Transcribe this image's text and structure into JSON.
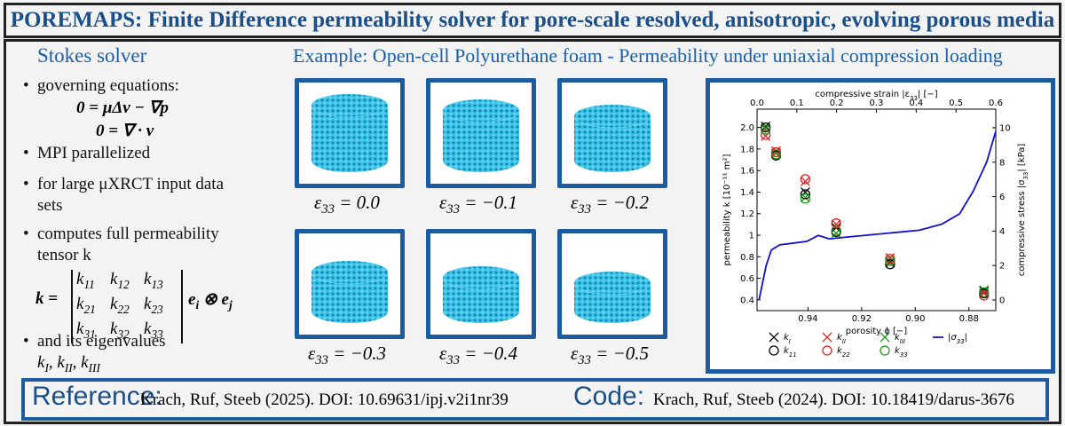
{
  "header": {
    "title": "POREMAPS: Finite Difference permeability solver for pore-scale resolved, anisotropic, evolving porous media"
  },
  "left": {
    "heading": "Stokes solver",
    "bullets": [
      "governing equations:",
      "MPI parallelized",
      "for large μXRCT input data sets",
      "computes full permeability tensor k",
      "and its eigenvalues"
    ],
    "equations": [
      "0 = μΔv − ∇p",
      "0 = ∇ · v"
    ],
    "tensor_lhs": "k =",
    "tensor": [
      [
        "k11",
        "k12",
        "k13"
      ],
      [
        "k21",
        "k22",
        "k23"
      ],
      [
        "k31",
        "k32",
        "k33"
      ]
    ],
    "tensor_rhs": "ei ⊗ ej",
    "eigenvalues": "kI, kII, kIII"
  },
  "example": {
    "heading": "Example: Open-cell Polyurethane foam - Permeability under uniaxial compression loading",
    "captions": [
      "ε33 = 0.0",
      "ε33 = −0.1",
      "ε33 = −0.2",
      "ε33 = −0.3",
      "ε33 = −0.4",
      "ε33 = −0.5"
    ]
  },
  "chart_data": {
    "type": "scatter",
    "xlabel": "porosity ϕ [−]",
    "x2label": "compressive strain |ε33| [−]",
    "ylabel": "permeability k [10⁻¹¹ m²]",
    "y2label": "compressive stress |σ33| [kPa]",
    "xlim": [
      0.959,
      0.87
    ],
    "xticks": [
      0.94,
      0.92,
      {
        "value": 0.9,
        "label": "0.90"
      },
      0.88
    ],
    "x2lim": [
      0,
      0.6
    ],
    "x2ticks": [
      {
        "value": 0,
        "label": "0.0"
      },
      0.1,
      0.2,
      0.3,
      0.4,
      0.5,
      0.6
    ],
    "ylim": [
      0.3,
      2.17
    ],
    "yticks": [
      0.4,
      0.6,
      0.8,
      1.0,
      1.2,
      1.4,
      1.6,
      1.8,
      {
        "value": 2.0,
        "label": "2.0"
      }
    ],
    "y2lim": [
      -0.62,
      11.08
    ],
    "y2ticks": [
      0,
      2,
      4,
      6,
      8,
      10
    ],
    "series": [
      {
        "name": "kI",
        "color": "#000000",
        "marker": "x",
        "x": [
          0.9558,
          0.9519,
          0.941,
          0.9295,
          0.9094,
          0.8744
        ],
        "values": [
          2.01,
          1.76,
          1.4,
          1.07,
          0.75,
          0.48
        ]
      },
      {
        "name": "kII",
        "color": "#e02020",
        "marker": "x",
        "x": [
          0.9558,
          0.9519,
          0.941,
          0.9295,
          0.9094,
          0.8744
        ],
        "values": [
          1.92,
          1.78,
          1.5,
          1.1,
          0.79,
          0.46
        ]
      },
      {
        "name": "kIII",
        "color": "#1a9a1a",
        "marker": "x",
        "x": [
          0.9558,
          0.9519,
          0.941,
          0.9295,
          0.9094,
          0.8744
        ],
        "values": [
          1.99,
          1.76,
          1.35,
          1.02,
          0.74,
          0.49
        ]
      },
      {
        "name": "k11",
        "color": "#000000",
        "marker": "o",
        "x": [
          0.9558,
          0.9519,
          0.941,
          0.9295,
          0.9094,
          0.8744
        ],
        "values": [
          2.0,
          1.74,
          1.38,
          1.03,
          0.73,
          0.46
        ]
      },
      {
        "name": "k22",
        "color": "#e02020",
        "marker": "o",
        "x": [
          0.9558,
          0.9519,
          0.941,
          0.9295,
          0.9094,
          0.8744
        ],
        "values": [
          1.93,
          1.77,
          1.52,
          1.11,
          0.78,
          0.44
        ]
      },
      {
        "name": "k33",
        "color": "#1a9a1a",
        "marker": "o",
        "x": [
          0.9558,
          0.9519,
          0.941,
          0.9295,
          0.9094,
          0.8744
        ],
        "values": [
          1.98,
          1.75,
          1.34,
          1.04,
          0.76,
          0.47
        ]
      },
      {
        "name": "|σ33|",
        "color": "#1010d0",
        "marker": "line",
        "axis": "y2",
        "xaxis": "x2",
        "x": [
          0.005,
          0.023,
          0.036,
          0.057,
          0.091,
          0.125,
          0.154,
          0.181,
          0.226,
          0.317,
          0.408,
          0.464,
          0.509,
          0.543,
          0.577,
          0.6
        ],
        "values": [
          0,
          2.0,
          2.9,
          3.2,
          3.3,
          3.4,
          3.75,
          3.55,
          3.65,
          3.85,
          4.05,
          4.4,
          5.0,
          6.3,
          8.0,
          9.8
        ]
      }
    ]
  },
  "footer": {
    "ref_label": "Reference:",
    "ref_text": "Krach, Ruf, Steeb (2025). DOI: 10.69631/ipj.v2i1nr39",
    "code_label": "Code:",
    "code_text": "Krach, Ruf, Steeb (2024). DOI: 10.18419/darus-3676"
  }
}
